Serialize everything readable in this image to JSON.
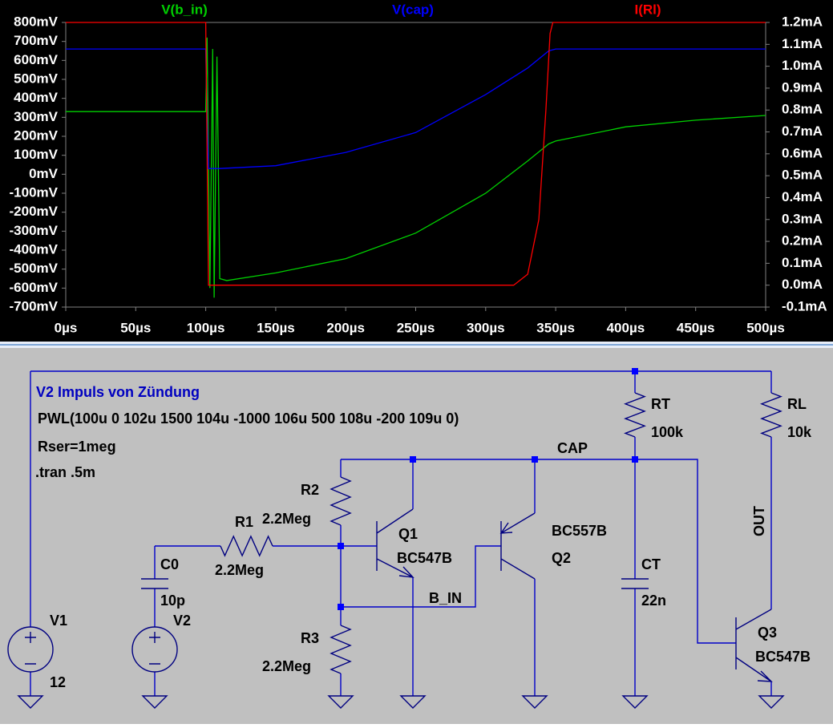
{
  "chart_data": {
    "type": "line",
    "xlim": [
      0,
      500
    ],
    "xticks": [
      {
        "value": 0,
        "label": "0µs"
      },
      {
        "value": 50,
        "label": "50µs"
      },
      {
        "value": 100,
        "label": "100µs"
      },
      {
        "value": 150,
        "label": "150µs"
      },
      {
        "value": 200,
        "label": "200µs"
      },
      {
        "value": 250,
        "label": "250µs"
      },
      {
        "value": 300,
        "label": "300µs"
      },
      {
        "value": 350,
        "label": "350µs"
      },
      {
        "value": 400,
        "label": "400µs"
      },
      {
        "value": 450,
        "label": "450µs"
      },
      {
        "value": 500,
        "label": "500µs"
      }
    ],
    "ylim": [
      -700,
      800
    ],
    "yticks": [
      {
        "value": 800,
        "label": "800mV"
      },
      {
        "value": 700,
        "label": "700mV"
      },
      {
        "value": 600,
        "label": "600mV"
      },
      {
        "value": 500,
        "label": "500mV"
      },
      {
        "value": 400,
        "label": "400mV"
      },
      {
        "value": 300,
        "label": "300mV"
      },
      {
        "value": 200,
        "label": "200mV"
      },
      {
        "value": 100,
        "label": "100mV"
      },
      {
        "value": 0,
        "label": "0mV"
      },
      {
        "value": -100,
        "label": "-100mV"
      },
      {
        "value": -200,
        "label": "-200mV"
      },
      {
        "value": -300,
        "label": "-300mV"
      },
      {
        "value": -400,
        "label": "-400mV"
      },
      {
        "value": -500,
        "label": "-500mV"
      },
      {
        "value": -600,
        "label": "-600mV"
      },
      {
        "value": -700,
        "label": "-700mV"
      }
    ],
    "y2lim": [
      -0.1,
      1.2
    ],
    "y2ticks": [
      {
        "value": 1.2,
        "label": "1.2mA"
      },
      {
        "value": 1.1,
        "label": "1.1mA"
      },
      {
        "value": 1.0,
        "label": "1.0mA"
      },
      {
        "value": 0.9,
        "label": "0.9mA"
      },
      {
        "value": 0.8,
        "label": "0.8mA"
      },
      {
        "value": 0.7,
        "label": "0.7mA"
      },
      {
        "value": 0.6,
        "label": "0.6mA"
      },
      {
        "value": 0.5,
        "label": "0.5mA"
      },
      {
        "value": 0.4,
        "label": "0.4mA"
      },
      {
        "value": 0.3,
        "label": "0.3mA"
      },
      {
        "value": 0.2,
        "label": "0.2mA"
      },
      {
        "value": 0.1,
        "label": "0.1mA"
      },
      {
        "value": 0.0,
        "label": "0.0mA"
      },
      {
        "value": -0.1,
        "label": "-0.1mA"
      }
    ],
    "grid": false,
    "series": [
      {
        "name": "V(b_in)",
        "color": "#00d000",
        "x": [
          0,
          100,
          101,
          103,
          105,
          106,
          108,
          110,
          115,
          150,
          200,
          250,
          300,
          330,
          345,
          350,
          400,
          450,
          500
        ],
        "values": [
          330,
          330,
          720,
          -600,
          660,
          -650,
          620,
          -550,
          -560,
          -520,
          -445,
          -310,
          -100,
          70,
          160,
          175,
          250,
          285,
          310
        ]
      },
      {
        "name": "V(cap)",
        "color": "#0000ff",
        "x": [
          0,
          100,
          101,
          102,
          110,
          150,
          200,
          250,
          300,
          330,
          345,
          350,
          500
        ],
        "values": [
          660,
          660,
          300,
          30,
          30,
          45,
          115,
          220,
          420,
          560,
          650,
          660,
          660
        ]
      },
      {
        "name": "I(Rl)",
        "color": "#ff0000",
        "axis": "y2",
        "x": [
          0,
          100,
          102,
          110,
          320,
          330,
          338,
          343,
          346,
          348,
          500
        ],
        "values": [
          1.2,
          1.2,
          0,
          0,
          0,
          0.05,
          0.3,
          0.8,
          1.15,
          1.2,
          1.2
        ]
      }
    ]
  },
  "schematic": {
    "title": "V2 Impuls von Zündung",
    "pwl": "PWL(100u 0 102u 1500 104u -1000 106u 500 108u -200 109u 0)",
    "rser": "Rser=1meg",
    "tran": ".tran .5m",
    "components": [
      {
        "name": "V1",
        "value": "12"
      },
      {
        "name": "V2"
      },
      {
        "name": "C0",
        "value": "10p"
      },
      {
        "name": "R1",
        "value": "2.2Meg"
      },
      {
        "name": "R2",
        "value": "2.2Meg"
      },
      {
        "name": "R3",
        "value": "2.2Meg"
      },
      {
        "name": "Q1",
        "value": "BC547B"
      },
      {
        "name": "Q2",
        "value": "BC557B"
      },
      {
        "name": "CT",
        "value": "22n"
      },
      {
        "name": "RT",
        "value": "100k"
      },
      {
        "name": "RL",
        "value": "10k"
      },
      {
        "name": "Q3",
        "value": "BC547B"
      }
    ],
    "nets": [
      "CAP",
      "B_IN",
      "OUT"
    ]
  }
}
